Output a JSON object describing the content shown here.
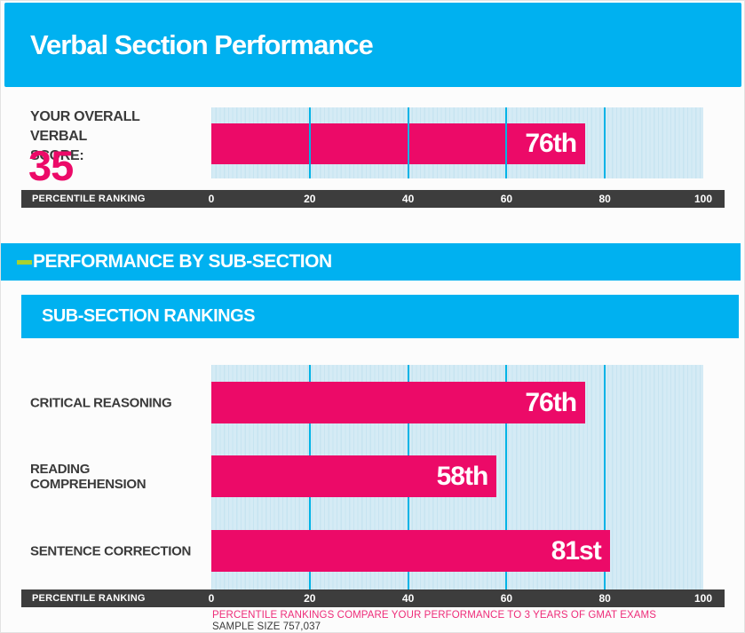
{
  "report": {
    "title": "Verbal Section Performance"
  },
  "overall": {
    "score_label_line1": "YOUR OVERALL VERBAL",
    "score_label_line2": "SCORE:",
    "score_value": "35",
    "percentile_display": "76th",
    "percentile_value": 76
  },
  "axis": {
    "label": "PERCENTILE RANKING",
    "ticks": [
      "0",
      "20",
      "40",
      "60",
      "80",
      "100"
    ],
    "gridline_values": [
      20,
      40,
      60,
      80
    ]
  },
  "subsection": {
    "section_header": "PERFORMANCE BY SUB-SECTION",
    "rankings_header": "SUB-SECTION RANKINGS",
    "rows": [
      {
        "label": "CRITICAL REASONING",
        "percentile_display": "76th",
        "percentile_value": 76
      },
      {
        "label": "READING COMPREHENSION",
        "percentile_display": "58th",
        "percentile_value": 58
      },
      {
        "label": "SENTENCE CORRECTION",
        "percentile_display": "81st",
        "percentile_value": 81
      }
    ]
  },
  "footer": {
    "note": "PERCENTILE RANKINGS COMPARE YOUR PERFORMANCE TO 3 YEARS OF GMAT EXAMS",
    "sample_size": "SAMPLE SIZE 757,037"
  },
  "colors": {
    "accent_cyan": "#00B1F0",
    "bar_pink": "#EC0A68",
    "plot_background": "#D5EBF5",
    "plot_stripe": "#C7E4F1",
    "gridline_cyan": "#00B3E6",
    "axis_bar_gray": "#3D3D3D",
    "text_dark": "#3A3A3A",
    "green_dash": "#A9D12F"
  },
  "chart_data": [
    {
      "type": "bar",
      "orientation": "horizontal",
      "title": "YOUR OVERALL VERBAL SCORE: 35",
      "categories": [
        "OVERALL VERBAL"
      ],
      "values": [
        76
      ],
      "value_labels": [
        "76th"
      ],
      "xlabel": "PERCENTILE RANKING",
      "xlim": [
        0,
        100
      ],
      "xticks": [
        0,
        20,
        40,
        60,
        80,
        100
      ],
      "grid": true,
      "legend": false
    },
    {
      "type": "bar",
      "orientation": "horizontal",
      "title": "SUB-SECTION RANKINGS",
      "categories": [
        "CRITICAL REASONING",
        "READING COMPREHENSION",
        "SENTENCE CORRECTION"
      ],
      "values": [
        76,
        58,
        81
      ],
      "value_labels": [
        "76th",
        "58th",
        "81st"
      ],
      "xlabel": "PERCENTILE RANKING",
      "xlim": [
        0,
        100
      ],
      "xticks": [
        0,
        20,
        40,
        60,
        80,
        100
      ],
      "grid": true,
      "legend": false,
      "footnote": "PERCENTILE RANKINGS COMPARE YOUR PERFORMANCE TO 3 YEARS OF GMAT EXAMS",
      "sample_size": "SAMPLE SIZE 757,037"
    }
  ]
}
